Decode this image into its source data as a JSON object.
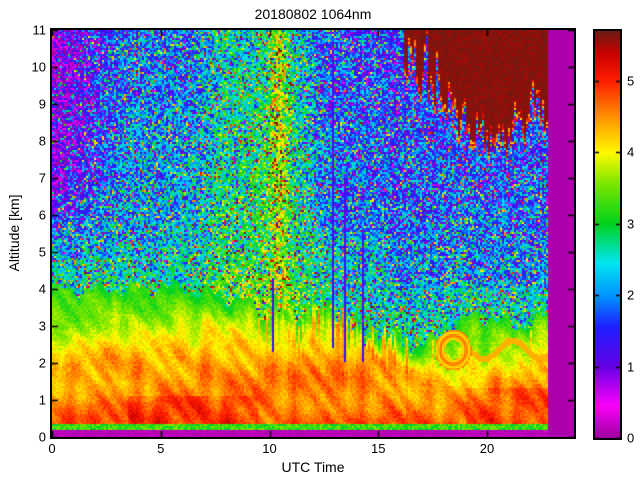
{
  "title": "20180802 1064nm",
  "axes": {
    "x": {
      "label": "UTC Time",
      "min": 0,
      "max": 24,
      "ticks": [
        0,
        5,
        10,
        15,
        20
      ]
    },
    "y": {
      "label": "Altitude [km]",
      "min": 0,
      "max": 11,
      "ticks": [
        0,
        1,
        2,
        3,
        4,
        5,
        6,
        7,
        8,
        9,
        10,
        11
      ]
    }
  },
  "colorbar": {
    "min": 0,
    "max": 5.7,
    "ticks": [
      0,
      1,
      2,
      3,
      4,
      5
    ]
  },
  "chart_data": {
    "type": "heatmap",
    "title": "20180802 1064nm",
    "xlabel": "UTC Time",
    "ylabel": "Altitude [km]",
    "x_range_hours": [
      0,
      24
    ],
    "y_range_km": [
      0,
      11
    ],
    "colorbar_range": [
      0,
      5.7
    ],
    "data_end_utc": 22.85,
    "description": "Lidar 1064 nm attenuated-backscatter time-height curtain: red/orange aerosol boundary layer below ~2.5 km topped by yellow-green gradient to ~4 km (sinking to ~2.4 km by 16 UTC), speckled blue/cyan molecular noise aloft (magenta-heavy before 3 UTC at high altitude, green-yellow daytime brightening 7-12 UTC), dark-brown saturated cloud deck 16-22.8 UTC between ~7.6 and 11 km, narrow dark attenuation streaks near 10.2/12.9/13.5/14.3 UTC, bright calibration lines at 2.6/17.55/22.05 UTC, solid purple no-data band after 22.85 UTC and below 0.2 km, bright green surface-return line at ~0.27 km",
    "colormap_stops": [
      [
        0.0,
        "#A000A0"
      ],
      [
        0.45,
        "#FA00FA"
      ],
      [
        1.0,
        "#6400E6"
      ],
      [
        1.55,
        "#1E1EFF"
      ],
      [
        2.0,
        "#0096FF"
      ],
      [
        2.45,
        "#00E6F0"
      ],
      [
        3.0,
        "#00D21E"
      ],
      [
        3.55,
        "#78E600"
      ],
      [
        4.0,
        "#FFFA00"
      ],
      [
        4.5,
        "#FF9100"
      ],
      [
        5.0,
        "#FF1E00"
      ],
      [
        5.4,
        "#C80000"
      ],
      [
        5.7,
        "#6B1B12"
      ]
    ],
    "features": {
      "layer_top_km": [
        [
          0,
          3.95
        ],
        [
          3,
          4.0
        ],
        [
          6,
          4.05
        ],
        [
          8,
          3.8
        ],
        [
          9.5,
          3.5
        ],
        [
          11,
          3.3
        ],
        [
          12.5,
          3.2
        ],
        [
          14,
          2.85
        ],
        [
          15.5,
          2.5
        ],
        [
          16.5,
          2.4
        ],
        [
          17.5,
          2.6
        ],
        [
          18.5,
          3.05
        ],
        [
          19.5,
          3.3
        ],
        [
          20.5,
          3.15
        ],
        [
          21.5,
          3.0
        ],
        [
          22.85,
          3.3
        ]
      ],
      "red_top_km": [
        [
          0,
          1.7
        ],
        [
          1.5,
          2.0
        ],
        [
          3,
          2.35
        ],
        [
          4.5,
          2.1
        ],
        [
          6,
          2.3
        ],
        [
          7.5,
          2.45
        ],
        [
          9,
          2.5
        ],
        [
          10,
          2.3
        ],
        [
          11,
          2.45
        ],
        [
          12,
          2.5
        ],
        [
          13,
          2.6
        ],
        [
          14,
          2.45
        ],
        [
          15,
          2.2
        ],
        [
          16,
          1.9
        ],
        [
          17,
          1.6
        ],
        [
          18,
          1.45
        ],
        [
          19,
          1.35
        ],
        [
          20,
          1.5
        ],
        [
          21,
          1.65
        ],
        [
          22,
          1.9
        ],
        [
          22.85,
          2.1
        ]
      ],
      "cloud": {
        "t0": 16.05,
        "base_km": [
          [
            16.1,
            11.2
          ],
          [
            16.35,
            9.8
          ],
          [
            16.6,
            10.6
          ],
          [
            16.9,
            9.3
          ],
          [
            17.2,
            10.4
          ],
          [
            17.5,
            9.0
          ],
          [
            17.8,
            10.0
          ],
          [
            18.1,
            8.4
          ],
          [
            18.4,
            9.2
          ],
          [
            18.7,
            8.1
          ],
          [
            19.0,
            8.7
          ],
          [
            19.3,
            7.9
          ],
          [
            19.7,
            8.5
          ],
          [
            20.1,
            7.7
          ],
          [
            20.5,
            8.3
          ],
          [
            20.9,
            7.6
          ],
          [
            21.3,
            8.8
          ],
          [
            21.7,
            8.0
          ],
          [
            22.1,
            9.4
          ],
          [
            22.5,
            8.6
          ],
          [
            22.85,
            8.2
          ]
        ]
      },
      "dark_streaks": [
        {
          "t": 10.15,
          "z0": 2.3,
          "z1": 4.3
        },
        {
          "t": 12.9,
          "z0": 2.4,
          "z1": 10.6
        },
        {
          "t": 13.45,
          "z0": 2.05,
          "z1": 7.0
        },
        {
          "t": 14.3,
          "z0": 2.0,
          "z1": 5.6
        }
      ],
      "bright_lines": [
        {
          "t": 2.6,
          "z1": 1.3
        },
        {
          "t": 17.55,
          "z1": 2.6
        },
        {
          "t": 22.05,
          "z1": 2.9
        }
      ],
      "ring": {
        "t": 18.45,
        "z": 2.35
      },
      "surface_line_km": 0.27,
      "overlap_band_km": 0.2
    }
  },
  "icons": {}
}
